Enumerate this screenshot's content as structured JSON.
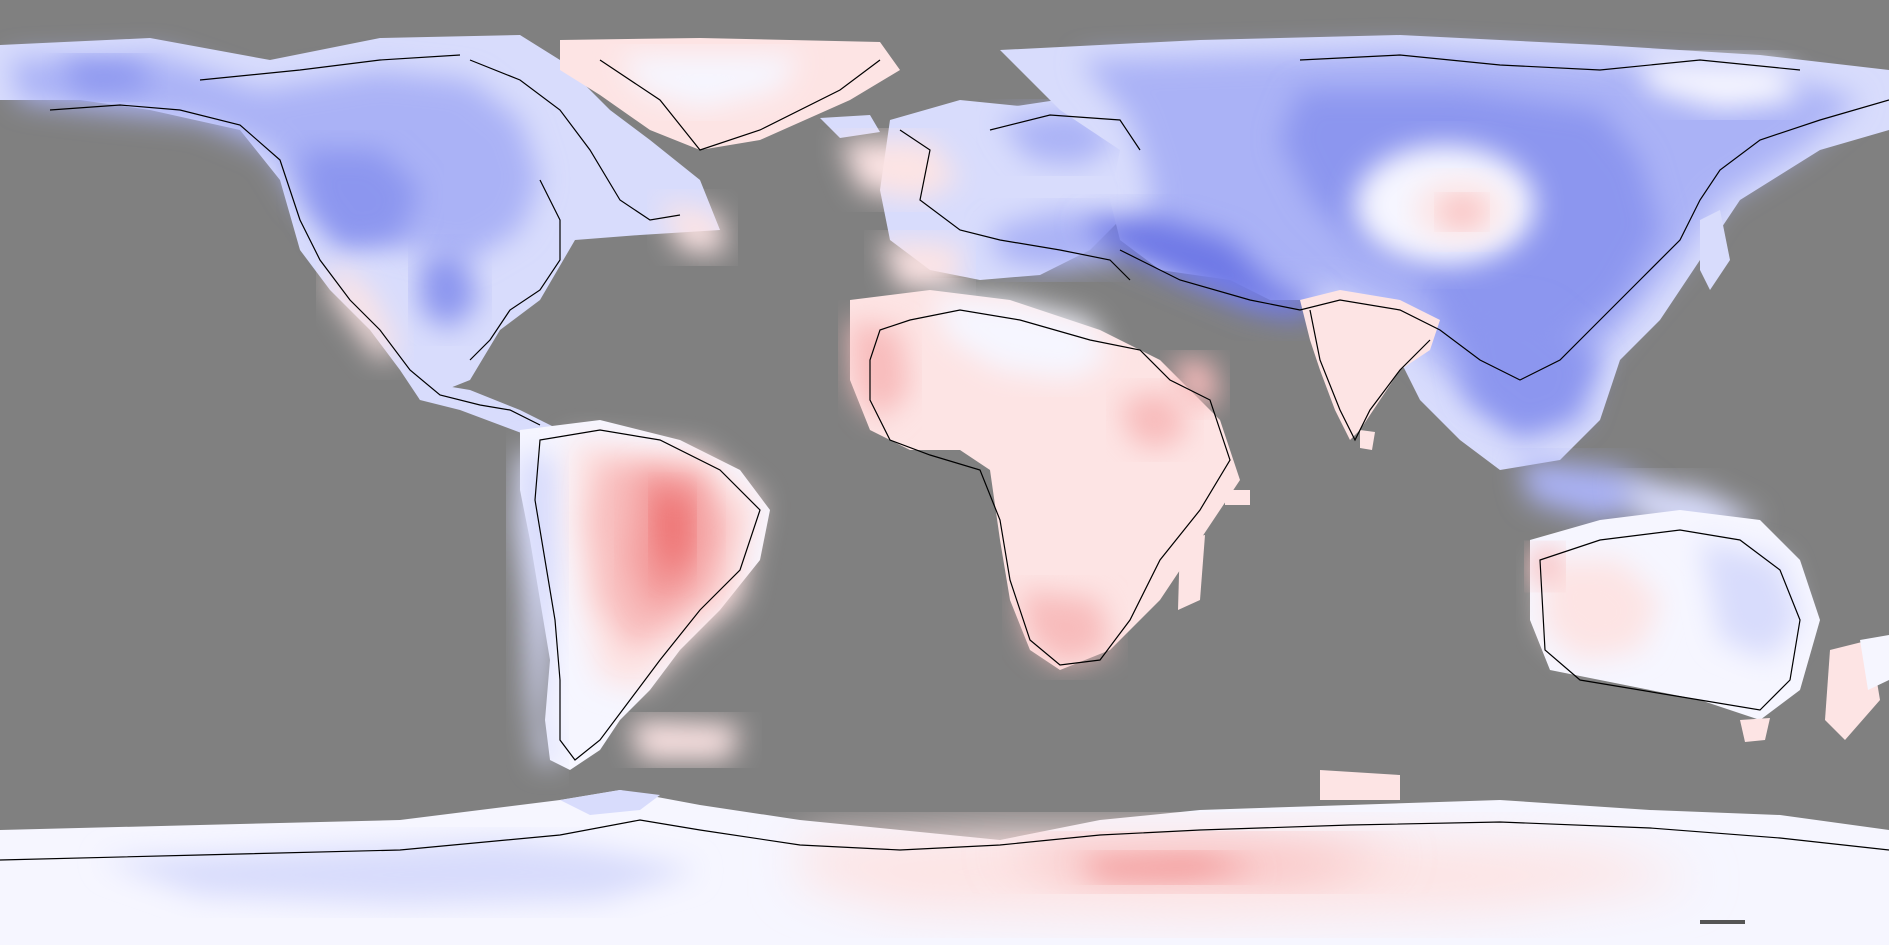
{
  "map": {
    "kind": "global temperature anomaly map",
    "projection": "equirectangular",
    "ocean_masked": true,
    "legend": null,
    "title": null
  },
  "colors": {
    "ocean_mask": "#808080",
    "neutral": "#f6f6ff",
    "cool_light": "#d8dcfc",
    "cool_mid": "#aab2f6",
    "cool_strong": "#8c96ef",
    "cool_deep": "#6e78e6",
    "warm_light": "#fde4e4",
    "warm_mid": "#f8bcbc",
    "warm_strong": "#f39a9a",
    "warm_deep": "#ee7575",
    "coastline": "#000000"
  },
  "regions": [
    {
      "name": "north-america",
      "tone": "cool"
    },
    {
      "name": "greenland",
      "tone": "warm"
    },
    {
      "name": "south-america",
      "tone": "warm"
    },
    {
      "name": "europe",
      "tone": "cool"
    },
    {
      "name": "africa",
      "tone": "warm"
    },
    {
      "name": "asia",
      "tone": "cool"
    },
    {
      "name": "india",
      "tone": "warm"
    },
    {
      "name": "australia",
      "tone": "neutral"
    },
    {
      "name": "antarctica",
      "tone": "warm"
    }
  ]
}
